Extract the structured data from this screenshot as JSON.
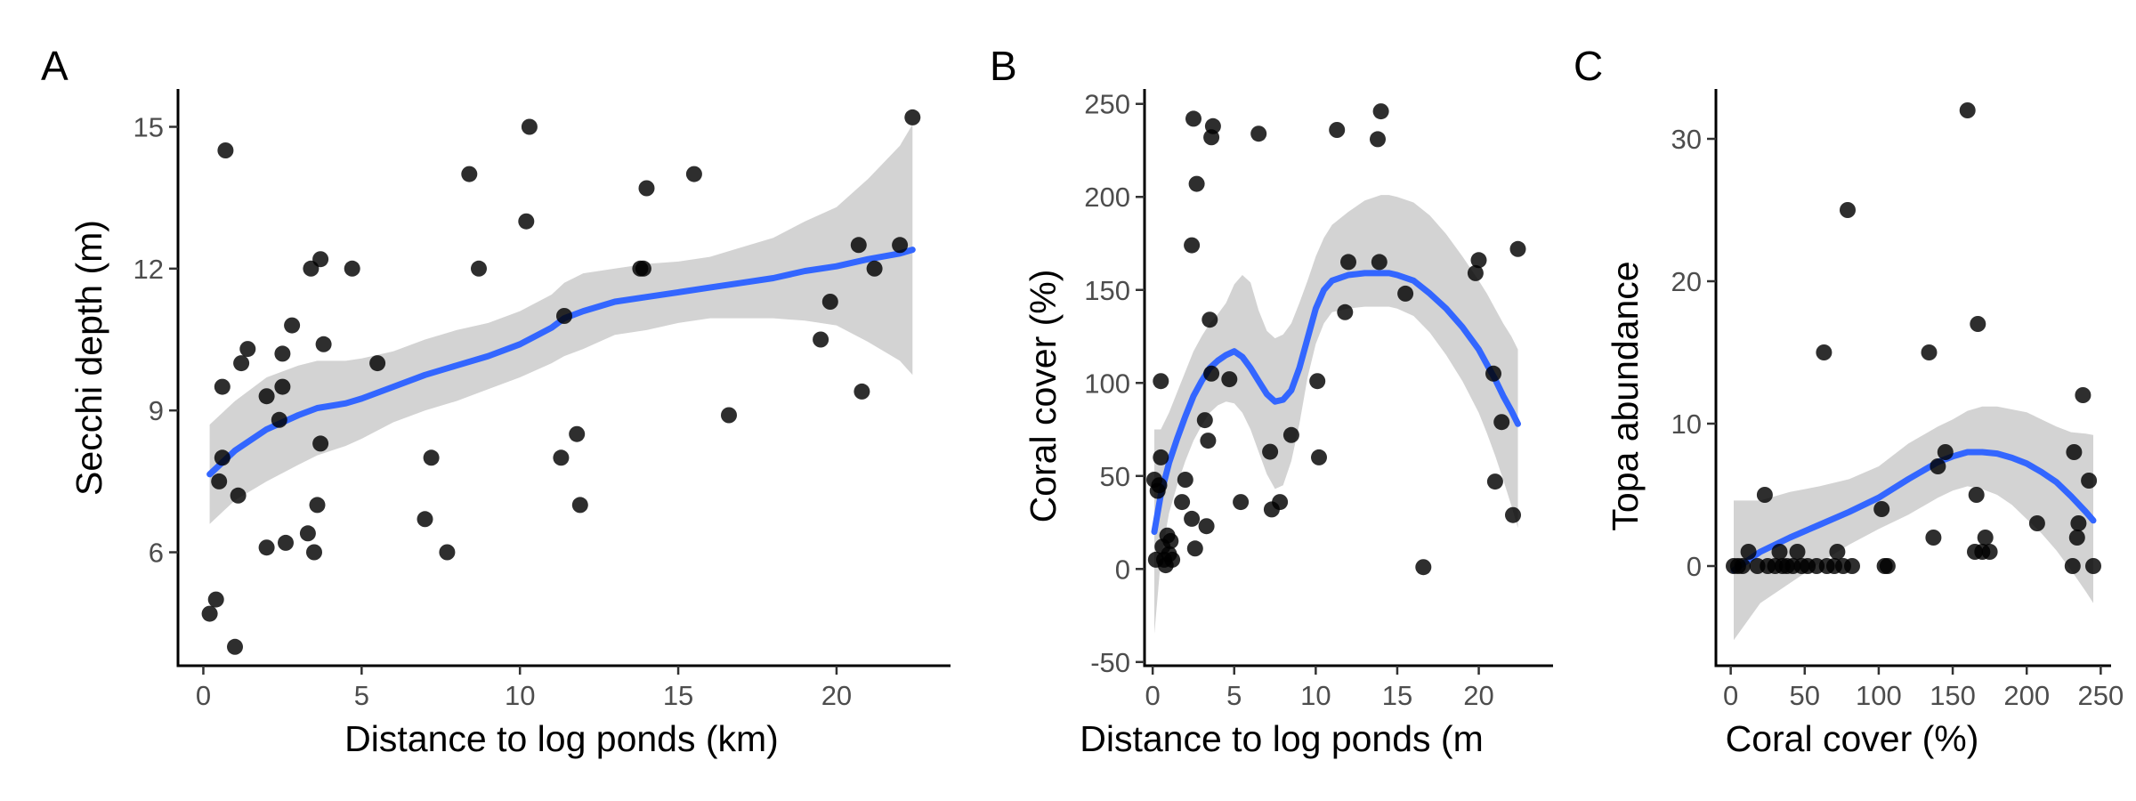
{
  "colors": {
    "smooth": "#3366ff",
    "band": "#d3d3d3",
    "points": "#000000"
  },
  "chart_data": [
    {
      "type": "scatter",
      "panel": "A",
      "xlabel": "Distance to log ponds (km)",
      "ylabel": "Secchi depth (m)",
      "xlim": [
        -0.8,
        23.6
      ],
      "ylim": [
        3.6,
        15.8
      ],
      "xticks": [
        0,
        5,
        10,
        15,
        20
      ],
      "yticks": [
        6,
        9,
        12,
        15
      ],
      "points": [
        [
          0.2,
          4.7
        ],
        [
          0.4,
          5.0
        ],
        [
          0.5,
          7.5
        ],
        [
          0.6,
          8.0
        ],
        [
          0.6,
          9.5
        ],
        [
          0.7,
          14.5
        ],
        [
          1.0,
          4.0
        ],
        [
          1.1,
          7.2
        ],
        [
          1.2,
          10.0
        ],
        [
          1.4,
          10.3
        ],
        [
          2.0,
          9.3
        ],
        [
          2.0,
          6.1
        ],
        [
          2.4,
          8.8
        ],
        [
          2.5,
          10.2
        ],
        [
          2.5,
          9.5
        ],
        [
          2.6,
          6.2
        ],
        [
          2.8,
          10.8
        ],
        [
          3.3,
          6.4
        ],
        [
          3.4,
          12.0
        ],
        [
          3.5,
          6.0
        ],
        [
          3.6,
          7.0
        ],
        [
          3.7,
          12.2
        ],
        [
          3.7,
          8.3
        ],
        [
          3.8,
          10.4
        ],
        [
          4.7,
          12.0
        ],
        [
          5.5,
          10.0
        ],
        [
          7.0,
          6.7
        ],
        [
          7.2,
          8.0
        ],
        [
          7.7,
          6.0
        ],
        [
          8.4,
          14.0
        ],
        [
          8.7,
          12.0
        ],
        [
          10.2,
          13.0
        ],
        [
          10.3,
          15.0
        ],
        [
          11.3,
          8.0
        ],
        [
          11.4,
          11.0
        ],
        [
          11.8,
          8.5
        ],
        [
          11.9,
          7.0
        ],
        [
          13.8,
          12.0
        ],
        [
          13.9,
          12.0
        ],
        [
          14.0,
          13.7
        ],
        [
          15.5,
          14.0
        ],
        [
          16.6,
          8.9
        ],
        [
          19.5,
          10.5
        ],
        [
          19.8,
          11.3
        ],
        [
          20.7,
          12.5
        ],
        [
          20.8,
          9.4
        ],
        [
          21.2,
          12.0
        ],
        [
          22.0,
          12.5
        ],
        [
          22.4,
          15.2
        ]
      ],
      "smooth": {
        "x": [
          0.2,
          1,
          2,
          3,
          3.6,
          4.5,
          5,
          6,
          7,
          8,
          9,
          10,
          11,
          11.4,
          12,
          13,
          14,
          15,
          16,
          17,
          18,
          19,
          20,
          21,
          22,
          22.4
        ],
        "y": [
          7.65,
          8.15,
          8.6,
          8.9,
          9.05,
          9.15,
          9.25,
          9.5,
          9.75,
          9.95,
          10.15,
          10.4,
          10.75,
          10.95,
          11.1,
          11.3,
          11.4,
          11.5,
          11.6,
          11.7,
          11.8,
          11.95,
          12.05,
          12.2,
          12.32,
          12.4
        ],
        "lower": [
          6.6,
          7.1,
          7.5,
          7.85,
          8.05,
          8.25,
          8.4,
          8.75,
          9.0,
          9.2,
          9.45,
          9.7,
          10.0,
          10.15,
          10.3,
          10.6,
          10.7,
          10.85,
          10.95,
          10.95,
          10.95,
          10.9,
          10.8,
          10.45,
          10.05,
          9.75
        ],
        "upper": [
          8.7,
          9.2,
          9.7,
          9.95,
          10.05,
          10.05,
          10.1,
          10.25,
          10.5,
          10.7,
          10.85,
          11.1,
          11.45,
          11.7,
          11.9,
          12.0,
          12.1,
          12.15,
          12.25,
          12.45,
          12.65,
          13.0,
          13.3,
          13.9,
          14.6,
          15.05
        ]
      }
    },
    {
      "type": "scatter",
      "panel": "B",
      "xlabel": "Distance to log ponds (m",
      "ylabel": "Coral cover (%)",
      "xlim": [
        -0.5,
        23.3
      ],
      "ylim": [
        -52,
        258
      ],
      "xticks": [
        0,
        5,
        10,
        15,
        20
      ],
      "yticks": [
        -50,
        0,
        50,
        100,
        150,
        200,
        250
      ],
      "points": [
        [
          0.1,
          48
        ],
        [
          0.2,
          5
        ],
        [
          0.3,
          42
        ],
        [
          0.4,
          45
        ],
        [
          0.5,
          60
        ],
        [
          0.5,
          101
        ],
        [
          0.6,
          12
        ],
        [
          0.7,
          5
        ],
        [
          0.8,
          2
        ],
        [
          0.9,
          18
        ],
        [
          1.0,
          8
        ],
        [
          1.1,
          15
        ],
        [
          1.2,
          5
        ],
        [
          1.8,
          36
        ],
        [
          2.0,
          48
        ],
        [
          2.4,
          27
        ],
        [
          2.4,
          174
        ],
        [
          2.5,
          242
        ],
        [
          2.6,
          11
        ],
        [
          2.7,
          207
        ],
        [
          3.2,
          80
        ],
        [
          3.3,
          23
        ],
        [
          3.4,
          69
        ],
        [
          3.5,
          134
        ],
        [
          3.6,
          105
        ],
        [
          3.6,
          232
        ],
        [
          3.7,
          238
        ],
        [
          4.7,
          102
        ],
        [
          5.4,
          36
        ],
        [
          6.5,
          234
        ],
        [
          7.2,
          63
        ],
        [
          7.3,
          32
        ],
        [
          7.8,
          36
        ],
        [
          8.5,
          72
        ],
        [
          10.1,
          101
        ],
        [
          10.2,
          60
        ],
        [
          11.3,
          236
        ],
        [
          11.8,
          138
        ],
        [
          12.0,
          165
        ],
        [
          13.8,
          231
        ],
        [
          13.9,
          165
        ],
        [
          14.0,
          246
        ],
        [
          15.5,
          148
        ],
        [
          16.6,
          1
        ],
        [
          19.8,
          159
        ],
        [
          20.0,
          166
        ],
        [
          20.9,
          105
        ],
        [
          21.0,
          47
        ],
        [
          21.4,
          79
        ],
        [
          22.1,
          29
        ],
        [
          22.4,
          172
        ]
      ],
      "smooth": {
        "x": [
          0.1,
          0.5,
          1,
          1.5,
          2,
          2.5,
          3,
          3.5,
          4,
          4.5,
          5,
          5.5,
          6,
          6.5,
          7,
          7.5,
          8,
          8.5,
          9,
          9.5,
          10,
          10.5,
          11,
          12,
          13,
          14,
          14.5,
          15,
          16,
          17,
          18,
          19,
          20,
          20.5,
          21,
          21.5,
          22,
          22.4
        ],
        "y": [
          20,
          40,
          57,
          70,
          82,
          93,
          101,
          108,
          112,
          115,
          117,
          114,
          108,
          101,
          94,
          90,
          91,
          96,
          108,
          124,
          140,
          150,
          155,
          158,
          159,
          159,
          159,
          158,
          155,
          148,
          140,
          130,
          118,
          110,
          102,
          93,
          85,
          78
        ],
        "lower": [
          -35,
          5,
          30,
          45,
          58,
          69,
          77,
          84,
          88,
          90,
          89,
          84,
          75,
          63,
          51,
          43,
          45,
          58,
          78,
          103,
          121,
          132,
          138,
          140,
          141,
          141,
          141,
          140,
          136,
          127,
          115,
          101,
          84,
          73,
          61,
          48,
          34,
          22
        ],
        "upper": [
          75,
          75,
          84,
          95,
          106,
          117,
          125,
          132,
          137,
          143,
          153,
          158,
          154,
          139,
          128,
          124,
          126,
          132,
          143,
          155,
          168,
          178,
          185,
          192,
          198,
          201,
          201,
          200,
          197,
          190,
          180,
          168,
          155,
          148,
          140,
          132,
          125,
          118
        ]
      }
    },
    {
      "type": "scatter",
      "panel": "C",
      "xlabel": "Coral cover (%)",
      "ylabel": "Topa abundance",
      "xlim": [
        -10,
        257
      ],
      "ylim": [
        -7,
        33.5
      ],
      "xticks": [
        0,
        50,
        100,
        150,
        200,
        250
      ],
      "yticks": [
        0,
        10,
        20,
        30
      ],
      "points": [
        [
          2,
          0
        ],
        [
          5,
          0
        ],
        [
          8,
          0
        ],
        [
          12,
          1
        ],
        [
          18,
          0
        ],
        [
          23,
          5
        ],
        [
          25,
          0
        ],
        [
          30,
          0
        ],
        [
          33,
          1
        ],
        [
          35,
          0
        ],
        [
          38,
          0
        ],
        [
          42,
          0
        ],
        [
          45,
          1
        ],
        [
          48,
          0
        ],
        [
          52,
          0
        ],
        [
          58,
          0
        ],
        [
          63,
          15
        ],
        [
          65,
          0
        ],
        [
          70,
          0
        ],
        [
          72,
          1
        ],
        [
          76,
          0
        ],
        [
          79,
          25
        ],
        [
          82,
          0
        ],
        [
          102,
          4
        ],
        [
          104,
          0
        ],
        [
          106,
          0
        ],
        [
          134,
          15
        ],
        [
          137,
          2
        ],
        [
          140,
          7
        ],
        [
          145,
          8
        ],
        [
          160,
          32
        ],
        [
          165,
          1
        ],
        [
          166,
          5
        ],
        [
          167,
          17
        ],
        [
          170,
          1
        ],
        [
          172,
          2
        ],
        [
          175,
          1
        ],
        [
          207,
          3
        ],
        [
          231,
          0
        ],
        [
          232,
          8
        ],
        [
          234,
          2
        ],
        [
          235,
          3
        ],
        [
          238,
          12
        ],
        [
          242,
          6
        ],
        [
          245,
          0
        ]
      ],
      "smooth": {
        "x": [
          2,
          20,
          40,
          60,
          80,
          100,
          120,
          140,
          150,
          160,
          170,
          180,
          190,
          200,
          210,
          220,
          230,
          240,
          245
        ],
        "y": [
          -0.3,
          1.0,
          2.0,
          2.9,
          3.8,
          4.8,
          6.1,
          7.3,
          7.7,
          8.0,
          8.0,
          7.9,
          7.6,
          7.2,
          6.6,
          5.9,
          4.9,
          3.8,
          3.2
        ],
        "lower": [
          -5.2,
          -2.6,
          -1.2,
          0.2,
          1.5,
          2.6,
          3.6,
          4.8,
          5.3,
          5.6,
          5.4,
          5.0,
          4.3,
          3.3,
          2.3,
          1.1,
          -0.3,
          -1.8,
          -2.6
        ],
        "upper": [
          4.6,
          4.6,
          5.2,
          5.6,
          6.1,
          7.0,
          8.6,
          9.8,
          10.3,
          10.9,
          11.2,
          11.2,
          11.0,
          10.8,
          10.3,
          9.8,
          9.4,
          9.3,
          9.2
        ]
      }
    }
  ]
}
